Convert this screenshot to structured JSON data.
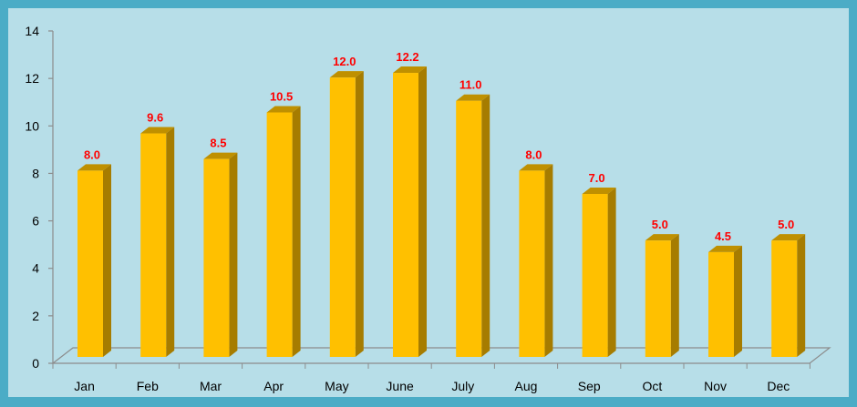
{
  "chart_data": {
    "type": "bar",
    "title": "",
    "xlabel": "",
    "ylabel": "",
    "categories": [
      "Jan",
      "Feb",
      "Mar",
      "Apr",
      "May",
      "June",
      "July",
      "Aug",
      "Sep",
      "Oct",
      "Nov",
      "Dec"
    ],
    "values": [
      8.0,
      9.6,
      8.5,
      10.5,
      12.0,
      12.2,
      11.0,
      8.0,
      7.0,
      5.0,
      4.5,
      5.0
    ],
    "data_labels": [
      "8.0",
      "9.6",
      "8.5",
      "10.5",
      "12.0",
      "12.2",
      "11.0",
      "8.0",
      "7.0",
      "5.0",
      "4.5",
      "5.0"
    ],
    "ylim": [
      0,
      14
    ],
    "yticks": [
      "0",
      "2",
      "4",
      "6",
      "8",
      "10",
      "12",
      "14"
    ],
    "grid": false,
    "legend": "none",
    "style": "3d-column",
    "colors": {
      "background_outer": "#4BACC6",
      "plot_background": "#B7DEE8",
      "bar_front": "#FFC000",
      "bar_side": "#A67C00",
      "bar_top": "#BF9000",
      "data_label": "#FF0000"
    }
  }
}
